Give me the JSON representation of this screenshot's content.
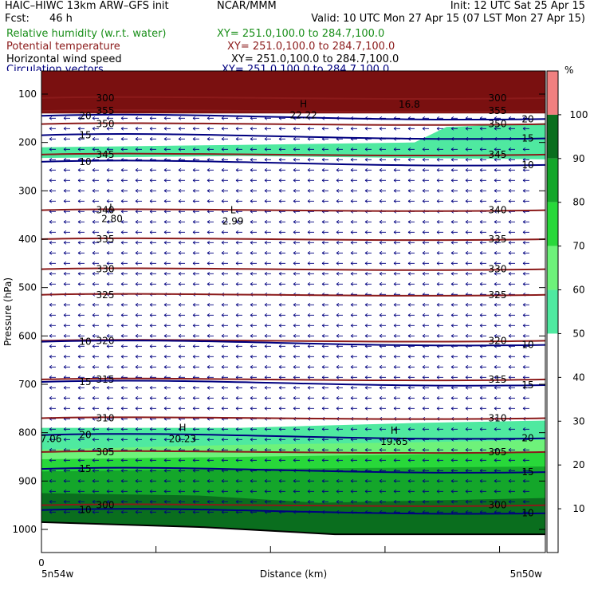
{
  "header": {
    "model": "HAIC–HIWC 13km ARW–GFS init",
    "center": "NCAR/MMM",
    "init": "Init: 12 UTC Sat 25 Apr 15",
    "fcst_label": "Fcst:",
    "fcst_value": "46 h",
    "valid": "Valid: 10 UTC Mon 27 Apr 15 (07 LST Mon 27 Apr 15)",
    "fields": [
      {
        "name": "Relative humidity (w.r.t. water)",
        "xy": "XY= 251.0,100.0 to 284.7,100.0",
        "color": "#1a8f1a"
      },
      {
        "name": "Potential temperature",
        "xy": "XY= 251.0,100.0 to 284.7,100.0",
        "color": "#8b1a1a"
      },
      {
        "name": "Horizontal wind speed",
        "xy": "XY= 251.0,100.0 to 284.7,100.0",
        "color": "#000080"
      },
      {
        "name": "Circulation vectors",
        "xy": "XY= 251.0,100.0 to 284.7,100.0",
        "color": "#000080"
      }
    ]
  },
  "chart_data": {
    "type": "cross-section",
    "ylabel": "Pressure (hPa)",
    "xlabel": "Distance (km)",
    "y_ticks": [
      100,
      200,
      300,
      400,
      500,
      600,
      700,
      800,
      900,
      1000
    ],
    "ylim": [
      1000,
      78
    ],
    "x_tick_label": "0",
    "x_left_label": "5n54w",
    "x_right_label": "5n50w",
    "colorbar": {
      "unit": "%",
      "ticks": [
        10,
        20,
        30,
        40,
        50,
        60,
        70,
        80,
        90,
        100
      ],
      "bands": [
        {
          "from": 100,
          "to": 110,
          "color": "#f08080"
        },
        {
          "from": 90,
          "to": 100,
          "color": "#0a6e1e"
        },
        {
          "from": 80,
          "to": 90,
          "color": "#14a62a"
        },
        {
          "from": 70,
          "to": 80,
          "color": "#28d83a"
        },
        {
          "from": 60,
          "to": 70,
          "color": "#6ef27a"
        },
        {
          "from": 50,
          "to": 60,
          "color": "#4fe9a0"
        },
        {
          "from": 0,
          "to": 50,
          "color": "#ffffff"
        }
      ]
    },
    "theta_contours": [
      {
        "value": 300,
        "p": 108,
        "label": "300"
      },
      {
        "value": 355,
        "p": 135,
        "label": "355"
      },
      {
        "value": 350,
        "p": 162,
        "label": "350"
      },
      {
        "value": 345,
        "p": 225,
        "label": "345"
      },
      {
        "value": 340,
        "p": 340,
        "label": "340"
      },
      {
        "value": 335,
        "p": 400,
        "label": "335"
      },
      {
        "value": 330,
        "p": 462,
        "label": "330"
      },
      {
        "value": 325,
        "p": 515,
        "label": "325"
      },
      {
        "value": 320,
        "p": 610,
        "label": "320"
      },
      {
        "value": 315,
        "p": 690,
        "label": "315"
      },
      {
        "value": 310,
        "p": 770,
        "label": "310"
      },
      {
        "value": 305,
        "p": 840,
        "label": "305"
      },
      {
        "value": 300,
        "p": 950,
        "label": "300"
      }
    ],
    "wind_contours": [
      {
        "value": 20,
        "p": 145,
        "label": "20"
      },
      {
        "value": 15,
        "p": 185,
        "label": "15"
      },
      {
        "value": 10,
        "p": 240,
        "label": "10"
      },
      {
        "value": 10,
        "p": 612,
        "label": "10"
      },
      {
        "value": 15,
        "p": 695,
        "label": "15"
      },
      {
        "value": 20,
        "p": 805,
        "label": "20"
      },
      {
        "value": 15,
        "p": 875,
        "label": "15"
      },
      {
        "value": 10,
        "p": 960,
        "label": "10"
      }
    ],
    "extrema": [
      {
        "type": "H",
        "value": "22.22",
        "x": 0.52,
        "p": 140
      },
      {
        "type": "L",
        "value": "2.80",
        "x": 0.14,
        "p": 355
      },
      {
        "type": "L",
        "value": "2.99",
        "x": 0.38,
        "p": 360
      },
      {
        "type": "H",
        "value": "20.23",
        "x": 0.28,
        "p": 810
      },
      {
        "type": "H",
        "value": "19.65",
        "x": 0.7,
        "p": 815
      },
      {
        "type": "",
        "value": "7.06",
        "x": 0.0,
        "p": 810
      },
      {
        "type": "",
        "value": "16.8",
        "x": 0.73,
        "p": 118
      }
    ]
  }
}
